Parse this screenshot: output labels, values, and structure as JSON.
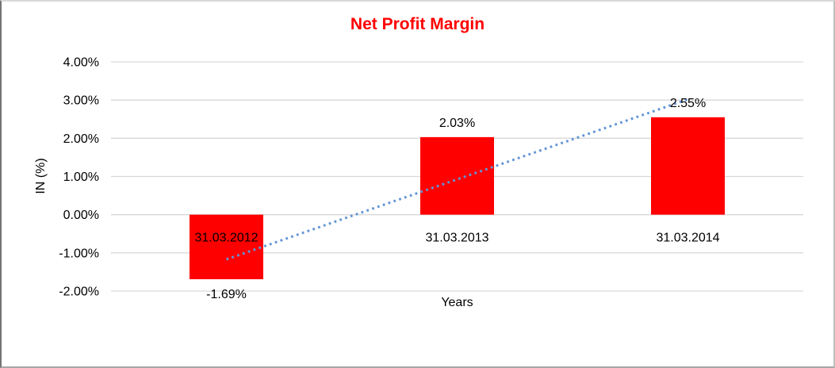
{
  "chart_data": {
    "type": "bar",
    "title": "Net Profit Margin",
    "xlabel": "Years",
    "ylabel": "IN (%)",
    "categories": [
      "31.03.2012",
      "31.03.2013",
      "31.03.2014"
    ],
    "values": [
      -1.69,
      2.03,
      2.55
    ],
    "data_labels": [
      "-1.69%",
      "2.03%",
      "2.55%"
    ],
    "ylim": [
      -2,
      4
    ],
    "y_axis": {
      "ticks": [
        {
          "label": "4.00%",
          "value": 4
        },
        {
          "label": "3.00%",
          "value": 3
        },
        {
          "label": "2.00%",
          "value": 2
        },
        {
          "label": "1.00%",
          "value": 1
        },
        {
          "label": "0.00%",
          "value": 0
        },
        {
          "label": "-1.00%",
          "value": -1
        },
        {
          "label": "-2.00%",
          "value": -2
        }
      ]
    },
    "grid": "horizontal",
    "legend": "none",
    "colors": {
      "bar": "#ff0000",
      "title": "#ff0000",
      "gridline": "#d9d9d9",
      "text": "#000000",
      "background": "#ffffff"
    },
    "trendline": {
      "style": "dotted",
      "color": "#6295d6",
      "start_value": -1.17,
      "end_value": 3.02
    }
  }
}
